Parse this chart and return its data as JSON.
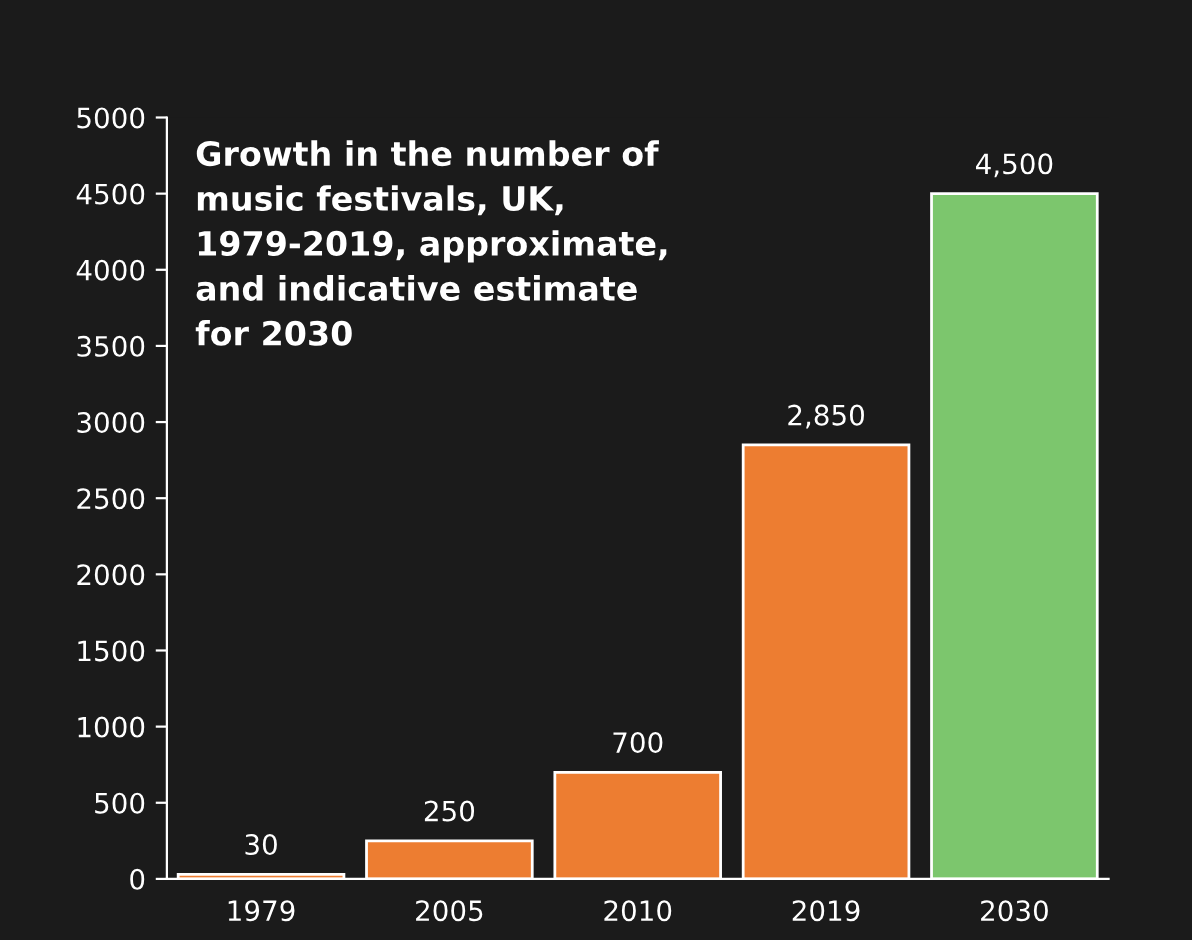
{
  "chart_data": {
    "type": "bar",
    "title": "Growth in the number of\nmusic festivals, UK,\n1979-2019, approximate,\nand indicative estimate\nfor 2030",
    "categories": [
      "1979",
      "2005",
      "2010",
      "2019",
      "2030"
    ],
    "values": [
      30,
      250,
      700,
      2850,
      4500
    ],
    "value_labels": [
      "30",
      "250",
      "700",
      "2,850",
      "4,500"
    ],
    "colors": [
      "#ed7d31",
      "#ed7d31",
      "#ed7d31",
      "#ed7d31",
      "#7cc66d"
    ],
    "ylim": [
      0,
      5000
    ],
    "yticks": [
      0,
      500,
      1000,
      1500,
      2000,
      2500,
      3000,
      3500,
      4000,
      4500,
      5000
    ],
    "grid": false,
    "legend": false
  }
}
